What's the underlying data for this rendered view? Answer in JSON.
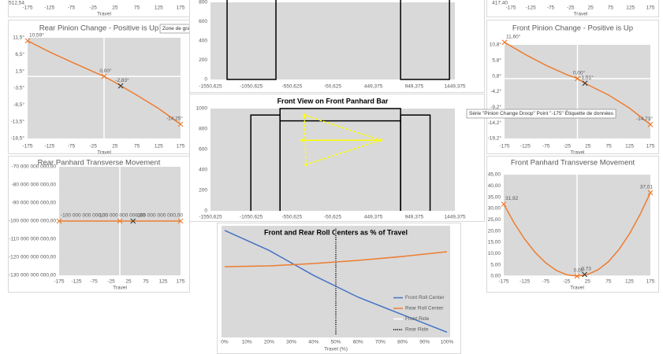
{
  "chart_data": [
    {
      "type": "line",
      "x_label": "Travel",
      "xlim": [
        -175,
        175
      ],
      "xticks": [
        -175,
        -125,
        -75,
        -25,
        25,
        75,
        125,
        175
      ],
      "yticks": [
        {
          "value": 512.54,
          "label": "512,54"
        }
      ],
      "zero_lines": false,
      "series": []
    },
    {
      "type": "line",
      "title": "Rear Pinion Change - Positive is Up",
      "tooltip": "Zone de graphique",
      "x_label": "Travel",
      "xlim": [
        -175,
        175
      ],
      "xticks": [
        -175,
        -125,
        -75,
        -25,
        25,
        75,
        125,
        175
      ],
      "ylim": [
        -18.5,
        11.5
      ],
      "yticks": [
        {
          "value": 11.5,
          "label": "11,5°"
        },
        {
          "value": 6.5,
          "label": "6,5°"
        },
        {
          "value": 1.5,
          "label": "1,5°"
        },
        {
          "value": -3.5,
          "label": "-3,5°"
        },
        {
          "value": -8.5,
          "label": "-8,5°"
        },
        {
          "value": -13.5,
          "label": "-13,5°"
        },
        {
          "value": -18.5,
          "label": "-18,5°"
        }
      ],
      "zero_lines": true,
      "plot_bg": "#d9d9d9",
      "series": [
        {
          "color": "#ed7d31",
          "x": [
            -175,
            -125,
            -75,
            -25,
            0,
            25,
            75,
            125,
            175
          ],
          "values": [
            10.59,
            7.3,
            4.3,
            1.4,
            0,
            -1.8,
            -5.6,
            -9.6,
            -14.25
          ]
        },
        {
          "color": "#ed7d31",
          "line": false,
          "marker": "x",
          "x": [
            -175,
            0,
            175
          ],
          "values": [
            10.59,
            0,
            -14.25
          ],
          "value_labels": [
            "10,59°",
            "0,00°",
            "-14,25°"
          ]
        },
        {
          "color": "#404040",
          "line": false,
          "marker": "x",
          "x": [
            38
          ],
          "values": [
            -2.83
          ],
          "value_labels": [
            "-2,83°"
          ]
        }
      ]
    },
    {
      "type": "line",
      "title": "Rear Panhard Transverse Movement",
      "x_label": "Travel",
      "xlim": [
        -175,
        175
      ],
      "xticks": [
        -175,
        -125,
        -75,
        -25,
        25,
        75,
        125,
        175
      ],
      "ylim": [
        -130000000000,
        -70000000000
      ],
      "yticks": [
        {
          "value": -70000000000,
          "label": "-70 000 000 000,00"
        },
        {
          "value": -80000000000,
          "label": "-80 000 000 000,00"
        },
        {
          "value": -90000000000,
          "label": "-90 000 000 000,00"
        },
        {
          "value": -100000000000,
          "label": "-100 000 000 000,00"
        },
        {
          "value": -110000000000,
          "label": "-110 000 000 000,00"
        },
        {
          "value": -120000000000,
          "label": "-120 000 000 000,00"
        },
        {
          "value": -130000000000,
          "label": "-130 000 000 000,00"
        }
      ],
      "zero_lines": true,
      "plot_bg": "#d9d9d9",
      "series": [
        {
          "color": "#ed7d31",
          "x": [
            -175,
            175
          ],
          "values": [
            -100000000000,
            -100000000000
          ]
        },
        {
          "color": "#ed7d31",
          "line": false,
          "marker": "x",
          "x": [
            -175,
            0,
            175
          ],
          "values": [
            -100000000000,
            -100000000000,
            -100000000000
          ],
          "value_labels": [
            "-100 000 000 000,00",
            "-100 000 000 000,00",
            "-100 000 000 000,00"
          ]
        },
        {
          "color": "#404040",
          "line": false,
          "marker": "x",
          "x": [
            38
          ],
          "values": [
            -100000000000
          ]
        }
      ]
    },
    {
      "type": "line",
      "xlim": [
        -1550.625,
        1449.375
      ],
      "xticks": [
        {
          "value": -1550.625,
          "label": "-1550,625"
        },
        {
          "value": -1050.625,
          "label": "-1050,625"
        },
        {
          "value": -550.625,
          "label": "-550,625"
        },
        {
          "value": -50.625,
          "label": "-50,625"
        },
        {
          "value": 449.375,
          "label": "449,375"
        },
        {
          "value": 949.375,
          "label": "949,375"
        },
        {
          "value": 1449.375,
          "label": "1449,375"
        }
      ],
      "ylim": [
        0,
        800
      ],
      "yticks": [
        0,
        200,
        400,
        600,
        800
      ],
      "zero_lines": false,
      "plot_bg": "#d9d9d9",
      "series": [
        {
          "color": "#000000",
          "x": [
            -1347,
            -1347,
            -747,
            -747
          ],
          "values": [
            1000,
            0,
            0,
            1000
          ]
        },
        {
          "color": "#000000",
          "x": [
            783,
            783,
            1383,
            1383
          ],
          "values": [
            1000,
            0,
            0,
            1000
          ]
        }
      ]
    },
    {
      "type": "line",
      "title": "Front View on Front Panhard Bar",
      "xlim": [
        -1550.625,
        1449.375
      ],
      "xticks": [
        {
          "value": -1550.625,
          "label": "-1550,625"
        },
        {
          "value": -1050.625,
          "label": "-1050,625"
        },
        {
          "value": -550.625,
          "label": "-550,625"
        },
        {
          "value": -50.625,
          "label": "-50,625"
        },
        {
          "value": 449.375,
          "label": "449,375"
        },
        {
          "value": 949.375,
          "label": "949,375"
        },
        {
          "value": 1449.375,
          "label": "1449,375"
        }
      ],
      "ylim": [
        0,
        1000
      ],
      "yticks": [
        0,
        200,
        400,
        600,
        800,
        1000
      ],
      "zero_lines": false,
      "plot_bg": "#d9d9d9",
      "series": [
        {
          "color": "#000000",
          "x": [
            -1055,
            -1055,
            -697,
            -697
          ],
          "values": [
            0,
            937,
            937,
            0
          ]
        },
        {
          "color": "#000000",
          "x": [
            -697,
            -697,
            783,
            783
          ],
          "values": [
            0,
            1000,
            1000,
            0
          ]
        },
        {
          "color": "#000000",
          "x": [
            783,
            783,
            1145,
            1145
          ],
          "values": [
            0,
            937,
            937,
            0
          ]
        },
        {
          "color": "#000000",
          "x": [
            -697,
            783
          ],
          "values": [
            880,
            880
          ]
        },
        {
          "color": "#ffff00",
          "dash": "dashed",
          "marker": "dot",
          "x": [
            -398,
            540,
            -379,
            -398
          ],
          "values": [
            936,
            690,
            452,
            936
          ]
        },
        {
          "color": "#ffff00",
          "marker": "dot",
          "x": [
            -427,
            540
          ],
          "values": [
            690,
            690
          ]
        }
      ]
    },
    {
      "type": "line",
      "title": "Front and Rear Roll Centers as % of Travel",
      "x_label": "Travel (%)",
      "xlim": [
        0,
        100
      ],
      "xticks": [
        {
          "value": 0,
          "label": "0%"
        },
        {
          "value": 10,
          "label": "10%"
        },
        {
          "value": 20,
          "label": "20%"
        },
        {
          "value": 30,
          "label": "30%"
        },
        {
          "value": 40,
          "label": "40%"
        },
        {
          "value": 50,
          "label": "50%"
        },
        {
          "value": 60,
          "label": "60%"
        },
        {
          "value": 70,
          "label": "70%"
        },
        {
          "value": 80,
          "label": "80%"
        },
        {
          "value": 90,
          "label": "90%"
        },
        {
          "value": 100,
          "label": "100%"
        }
      ],
      "ylim": [
        0,
        100
      ],
      "yticks": [],
      "zero_lines": false,
      "plot_bg": "#d9d9d9",
      "legend": "lower right",
      "series": [
        {
          "name": "Front Roll Center",
          "color": "#4472c4",
          "x": [
            0,
            20,
            40,
            60,
            80,
            100
          ],
          "values": [
            97.8,
            79,
            55.5,
            35,
            18.5,
            2
          ]
        },
        {
          "name": "Rear Roll Center",
          "color": "#ed7d31",
          "x": [
            0,
            20,
            40,
            60,
            80,
            100
          ],
          "values": [
            63.7,
            64.4,
            66.7,
            69.6,
            73.3,
            77.8
          ]
        },
        {
          "name": "Front Ride",
          "color": "#ffffff",
          "x": [
            50,
            50
          ],
          "values": [
            0,
            100
          ]
        },
        {
          "name": "Rear Ride",
          "color": "#000000",
          "dash": "dotted",
          "x": [
            50,
            50
          ],
          "values": [
            0,
            100
          ]
        }
      ]
    },
    {
      "type": "line",
      "x_label": "Travel",
      "xlim": [
        -175,
        175
      ],
      "xticks": [
        -175,
        -125,
        -75,
        -25,
        25,
        75,
        125,
        175
      ],
      "yticks": [
        {
          "value": 417.4,
          "label": "417,40"
        }
      ],
      "zero_lines": false,
      "series": []
    },
    {
      "type": "line",
      "title": "Front Pinion Change - Positive is Up",
      "tooltip": "Série \"Pinion Change Droop\" Point \"-175\" Étiquette de données",
      "x_label": "Travel",
      "xlim": [
        -175,
        175
      ],
      "xticks": [
        -175,
        -125,
        -75,
        -25,
        25,
        75,
        125,
        175
      ],
      "ylim": [
        -19.2,
        10.8
      ],
      "yticks": [
        {
          "value": 10.8,
          "label": "10,8°"
        },
        {
          "value": 5.8,
          "label": "5,8°"
        },
        {
          "value": 0.8,
          "label": "0,8°"
        },
        {
          "value": -4.2,
          "label": "-4,2°"
        },
        {
          "value": -9.2,
          "label": "-9,2°"
        },
        {
          "value": -14.2,
          "label": "-14,2°"
        },
        {
          "value": -19.2,
          "label": "-19,2°"
        }
      ],
      "zero_lines": true,
      "plot_bg": "#d9d9d9",
      "series": [
        {
          "color": "#ed7d31",
          "x": [
            -175,
            -125,
            -75,
            -25,
            0,
            25,
            75,
            125,
            175
          ],
          "values": [
            11.6,
            7.7,
            4.2,
            1.2,
            0,
            -2.0,
            -5.3,
            -9.5,
            -14.73
          ]
        },
        {
          "color": "#ed7d31",
          "line": false,
          "marker": "x",
          "x": [
            -175,
            0,
            175
          ],
          "values": [
            11.6,
            0,
            -14.73
          ],
          "value_labels": [
            "11,60°",
            "0,00°",
            "-14,73°"
          ]
        },
        {
          "color": "#404040",
          "line": false,
          "marker": "x",
          "x": [
            18
          ],
          "values": [
            -1.51
          ],
          "value_labels": [
            "-1,51°"
          ]
        }
      ]
    },
    {
      "type": "line",
      "title": "Front Panhard Transverse Movement",
      "x_label": "Travel",
      "xlim": [
        -175,
        175
      ],
      "xticks": [
        -175,
        -125,
        -75,
        -25,
        25,
        75,
        125,
        175
      ],
      "ylim": [
        0,
        45
      ],
      "yticks": [
        {
          "value": 0,
          "label": "0,00"
        },
        {
          "value": 5,
          "label": "5,00"
        },
        {
          "value": 10,
          "label": "10,00"
        },
        {
          "value": 15,
          "label": "15,00"
        },
        {
          "value": 20,
          "label": "20,00"
        },
        {
          "value": 25,
          "label": "25,00"
        },
        {
          "value": 30,
          "label": "30,00"
        },
        {
          "value": 35,
          "label": "35,00"
        },
        {
          "value": 40,
          "label": "40,00"
        },
        {
          "value": 45,
          "label": "45,00"
        }
      ],
      "zero_lines": true,
      "plot_bg": "#d9d9d9",
      "series": [
        {
          "color": "#ed7d31",
          "x": [
            -175,
            -150,
            -125,
            -100,
            -75,
            -50,
            -25,
            0,
            25,
            50,
            75,
            100,
            125,
            150,
            175
          ],
          "values": [
            31.92,
            23.5,
            16.4,
            10.5,
            5.9,
            2.6,
            0.6,
            0,
            0.7,
            2.8,
            6.4,
            11.8,
            18.7,
            27.2,
            37.01
          ]
        },
        {
          "color": "#ed7d31",
          "line": false,
          "marker": "x",
          "x": [
            -175,
            0,
            175
          ],
          "values": [
            31.92,
            0,
            37.01
          ],
          "value_labels": [
            "31,92",
            "0,00",
            "37,01"
          ]
        },
        {
          "color": "#404040",
          "line": false,
          "marker": "x",
          "x": [
            18
          ],
          "values": [
            0.73
          ],
          "value_labels": [
            "0,73"
          ]
        }
      ]
    }
  ]
}
